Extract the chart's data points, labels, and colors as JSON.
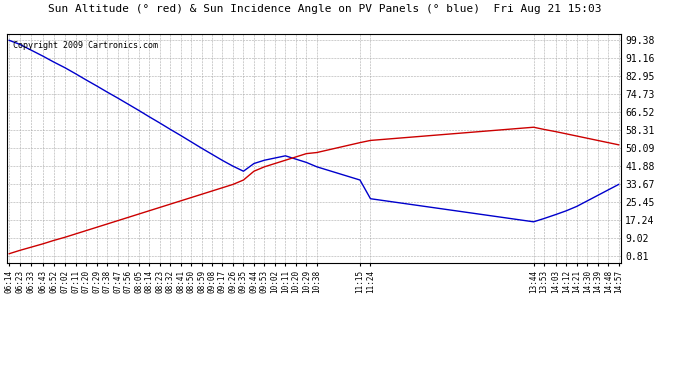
{
  "title": "Sun Altitude (° red) & Sun Incidence Angle on PV Panels (° blue)  Fri Aug 21 15:03",
  "copyright": "Copyright 2009 Cartronics.com",
  "background_color": "#ffffff",
  "plot_bg_color": "#ffffff",
  "grid_color": "#aaaaaa",
  "blue_color": "#0000cc",
  "red_color": "#cc0000",
  "yticks": [
    0.81,
    9.02,
    17.24,
    25.45,
    33.67,
    41.88,
    50.09,
    58.31,
    66.52,
    74.73,
    82.95,
    91.16,
    99.38
  ],
  "xtick_labels": [
    "06:14",
    "06:23",
    "06:33",
    "06:43",
    "06:52",
    "07:02",
    "07:11",
    "07:20",
    "07:29",
    "07:38",
    "07:47",
    "07:56",
    "08:05",
    "08:14",
    "08:23",
    "08:32",
    "08:41",
    "08:50",
    "08:59",
    "09:08",
    "09:17",
    "09:26",
    "09:35",
    "09:44",
    "09:53",
    "10:02",
    "10:11",
    "10:20",
    "10:29",
    "10:38",
    "11:15",
    "11:24",
    "13:44",
    "13:53",
    "14:03",
    "14:12",
    "14:21",
    "14:30",
    "14:39",
    "14:48",
    "14:57"
  ],
  "blue_data": [
    [
      374,
      99.0
    ],
    [
      383,
      97.2
    ],
    [
      393,
      94.5
    ],
    [
      403,
      91.8
    ],
    [
      412,
      89.2
    ],
    [
      422,
      86.5
    ],
    [
      431,
      83.8
    ],
    [
      440,
      81.0
    ],
    [
      449,
      78.3
    ],
    [
      458,
      75.5
    ],
    [
      467,
      72.8
    ],
    [
      476,
      70.0
    ],
    [
      485,
      67.2
    ],
    [
      494,
      64.3
    ],
    [
      503,
      61.5
    ],
    [
      512,
      58.6
    ],
    [
      521,
      55.8
    ],
    [
      530,
      52.9
    ],
    [
      539,
      50.0
    ],
    [
      548,
      47.2
    ],
    [
      557,
      44.4
    ],
    [
      566,
      41.8
    ],
    [
      575,
      39.5
    ],
    [
      584,
      43.0
    ],
    [
      593,
      44.5
    ],
    [
      602,
      45.5
    ],
    [
      611,
      46.5
    ],
    [
      620,
      45.0
    ],
    [
      629,
      43.5
    ],
    [
      638,
      41.5
    ],
    [
      675,
      35.5
    ],
    [
      684,
      27.0
    ],
    [
      824,
      16.5
    ],
    [
      833,
      18.0
    ],
    [
      843,
      19.8
    ],
    [
      852,
      21.5
    ],
    [
      861,
      23.5
    ],
    [
      870,
      26.0
    ],
    [
      879,
      28.5
    ],
    [
      888,
      31.0
    ],
    [
      897,
      33.5
    ]
  ],
  "red_data": [
    [
      374,
      2.0
    ],
    [
      383,
      3.5
    ],
    [
      393,
      5.0
    ],
    [
      403,
      6.5
    ],
    [
      412,
      8.0
    ],
    [
      422,
      9.5
    ],
    [
      431,
      11.0
    ],
    [
      440,
      12.5
    ],
    [
      449,
      14.0
    ],
    [
      458,
      15.5
    ],
    [
      467,
      17.0
    ],
    [
      476,
      18.5
    ],
    [
      485,
      20.0
    ],
    [
      494,
      21.5
    ],
    [
      503,
      23.0
    ],
    [
      512,
      24.5
    ],
    [
      521,
      26.0
    ],
    [
      530,
      27.5
    ],
    [
      539,
      29.0
    ],
    [
      548,
      30.5
    ],
    [
      557,
      32.0
    ],
    [
      566,
      33.5
    ],
    [
      575,
      35.5
    ],
    [
      584,
      39.5
    ],
    [
      593,
      41.5
    ],
    [
      602,
      43.0
    ],
    [
      611,
      44.5
    ],
    [
      620,
      46.0
    ],
    [
      629,
      47.5
    ],
    [
      638,
      48.0
    ],
    [
      675,
      52.5
    ],
    [
      684,
      53.5
    ],
    [
      824,
      59.5
    ],
    [
      833,
      58.5
    ],
    [
      843,
      57.5
    ],
    [
      852,
      56.5
    ],
    [
      861,
      55.5
    ],
    [
      870,
      54.5
    ],
    [
      879,
      53.5
    ],
    [
      888,
      52.5
    ],
    [
      897,
      51.5
    ]
  ]
}
